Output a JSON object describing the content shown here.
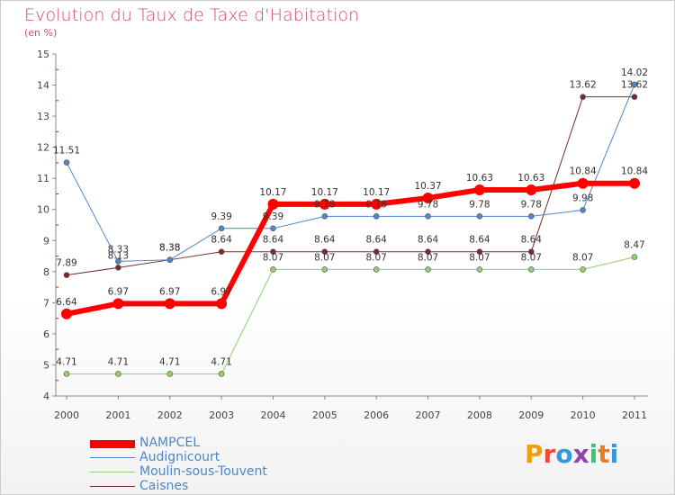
{
  "title": "Evolution du Taux de Taxe d'Habitation",
  "unit_label": "(en %)",
  "logo": {
    "text": "Proxiti",
    "colors": [
      "#f39c12",
      "#e74c3c",
      "#3498db",
      "#8e44ad",
      "#2ecc71",
      "#e67e22",
      "#3498db"
    ]
  },
  "chart_data": {
    "type": "line",
    "x": [
      "2000",
      "2001",
      "2002",
      "2003",
      "2004",
      "2005",
      "2006",
      "2007",
      "2008",
      "2009",
      "2010",
      "2011"
    ],
    "ylim": [
      4,
      15
    ],
    "yticks": [
      4,
      5,
      6,
      7,
      8,
      9,
      10,
      11,
      12,
      13,
      14,
      15
    ],
    "grid": false,
    "legend_position": "bottom-left",
    "series": [
      {
        "name": "NAMPCEL",
        "color": "#ff0000",
        "values": [
          6.64,
          6.97,
          6.97,
          6.97,
          10.17,
          10.17,
          10.17,
          10.37,
          10.63,
          10.63,
          10.84,
          10.84
        ],
        "labels": [
          "6.64",
          "6.97",
          "6.97",
          "6.97",
          "10.17",
          "10.17",
          "10.17",
          "10.37",
          "10.63",
          "10.63",
          "10.84",
          "10.84"
        ]
      },
      {
        "name": "Audignicourt",
        "color": "#4f86c8",
        "values": [
          11.51,
          8.33,
          8.38,
          9.39,
          9.39,
          9.78,
          9.78,
          9.78,
          9.78,
          9.78,
          9.98,
          14.02
        ],
        "labels": [
          "11.51",
          "8.33",
          "8.38",
          "9.39",
          "9.39",
          "9.78",
          "9.78",
          "9.78",
          "9.78",
          "9.78",
          "9.98",
          "14.02"
        ]
      },
      {
        "name": "Moulin-sous-Touvent",
        "color": "#8fd16a",
        "values": [
          4.71,
          4.71,
          4.71,
          4.71,
          8.07,
          8.07,
          8.07,
          8.07,
          8.07,
          8.07,
          8.07,
          8.47
        ],
        "labels": [
          "4.71",
          "4.71",
          "4.71",
          "4.71",
          "8.07",
          "8.07",
          "8.07",
          "8.07",
          "8.07",
          "8.07",
          "8.07",
          "8.47"
        ]
      },
      {
        "name": "Caisnes",
        "color": "#7a2a2a",
        "values": [
          7.89,
          8.13,
          8.38,
          8.64,
          8.64,
          8.64,
          8.64,
          8.64,
          8.64,
          8.64,
          13.62,
          13.62
        ],
        "labels": [
          "7.89",
          "8.13",
          "8.38",
          "8.64",
          "8.64",
          "8.64",
          "8.64",
          "8.64",
          "8.64",
          "8.64",
          "13.62",
          "13.62"
        ]
      }
    ]
  }
}
